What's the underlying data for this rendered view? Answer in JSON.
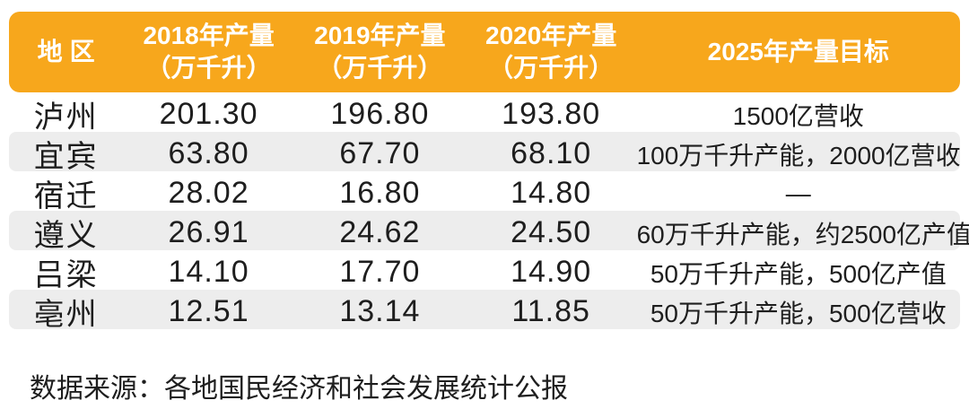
{
  "colors": {
    "header_bg": "#F7A71C",
    "header_text": "#FFFFFF",
    "stripe_bg": "#EDEDED",
    "body_text": "#1E1E1E"
  },
  "table": {
    "columns": [
      {
        "label": "地区",
        "sub": ""
      },
      {
        "label": "2018年产量",
        "sub": "（万千升）"
      },
      {
        "label": "2019年产量",
        "sub": "（万千升）"
      },
      {
        "label": "2020年产量",
        "sub": "（万千升）"
      },
      {
        "label": "2025年产量目标",
        "sub": ""
      }
    ],
    "rows": [
      {
        "region": "泸州",
        "y2018": "201.30",
        "y2019": "196.80",
        "y2020": "193.80",
        "target": "1500亿营收"
      },
      {
        "region": "宜宾",
        "y2018": "63.80",
        "y2019": "67.70",
        "y2020": "68.10",
        "target": "100万千升产能，2000亿营收"
      },
      {
        "region": "宿迁",
        "y2018": "28.02",
        "y2019": "16.80",
        "y2020": "14.80",
        "target": "—"
      },
      {
        "region": "遵义",
        "y2018": "26.91",
        "y2019": "24.62",
        "y2020": "24.50",
        "target": "60万千升产能，约2500亿产值"
      },
      {
        "region": "吕梁",
        "y2018": "14.10",
        "y2019": "17.70",
        "y2020": "14.90",
        "target": "50万千升产能，500亿产值"
      },
      {
        "region": "亳州",
        "y2018": "12.51",
        "y2019": "13.14",
        "y2020": "11.85",
        "target": "50万千升产能，500亿营收"
      }
    ]
  },
  "footer": {
    "source": "数据来源：各地国民经济和社会发展统计公报"
  },
  "chart_data": {
    "type": "table",
    "title": "",
    "columns": [
      "地区",
      "2018年产量（万千升）",
      "2019年产量（万千升）",
      "2020年产量（万千升）",
      "2025年产量目标"
    ],
    "rows": [
      [
        "泸州",
        201.3,
        196.8,
        193.8,
        "1500亿营收"
      ],
      [
        "宜宾",
        63.8,
        67.7,
        68.1,
        "100万千升产能，2000亿营收"
      ],
      [
        "宿迁",
        28.02,
        16.8,
        14.8,
        "—"
      ],
      [
        "遵义",
        26.91,
        24.62,
        24.5,
        "60万千升产能，约2500亿产值"
      ],
      [
        "吕梁",
        14.1,
        17.7,
        14.9,
        "50万千升产能，500亿产值"
      ],
      [
        "亳州",
        12.51,
        13.14,
        11.85,
        "50万千升产能，500亿营收"
      ]
    ],
    "source_note": "数据来源：各地国民经济和社会发展统计公报",
    "layout_hints": {
      "header_style": "orange rounded band, white bold text",
      "row_striping": "even rows light gray rounded"
    }
  }
}
